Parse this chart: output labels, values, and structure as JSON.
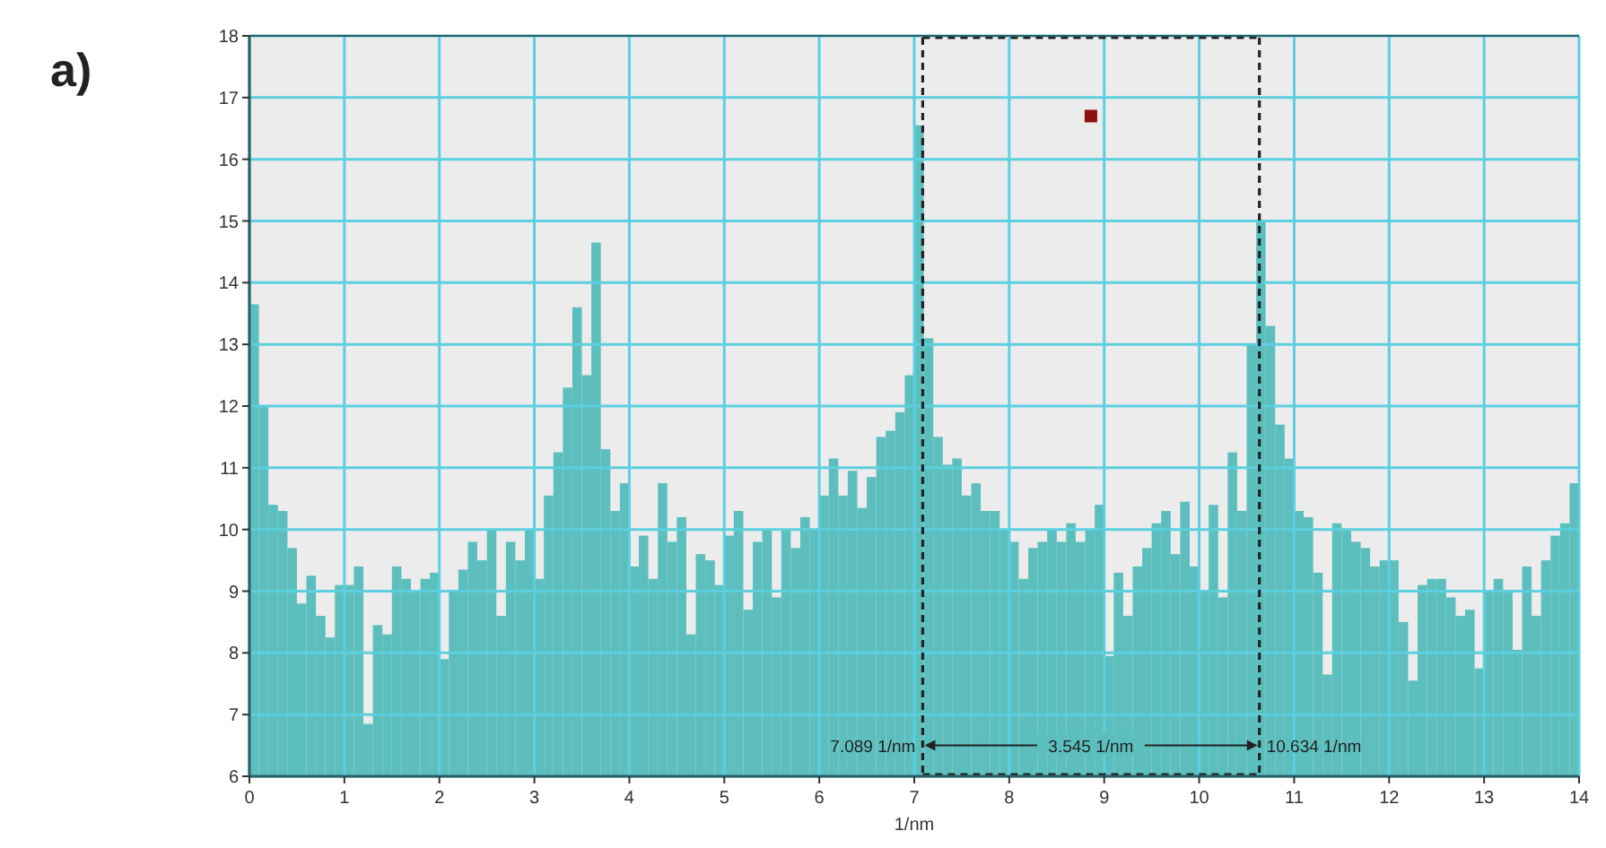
{
  "chart_data": {
    "type": "histogram",
    "title": "a)",
    "xlabel": "1/nm",
    "color": "#5cbfbe",
    "bins": [
      0,
      0.1,
      0.2,
      0.3,
      0.4,
      0.5,
      0.6,
      0.7,
      0.8,
      0.9,
      1,
      1.1,
      1.2,
      1.3,
      1.4,
      1.5,
      1.6,
      1.7,
      1.8,
      1.9,
      2,
      2.1,
      2.2,
      2.3,
      2.4,
      2.5,
      2.6,
      2.7,
      2.8,
      2.9,
      3,
      3.1,
      3.2,
      3.3,
      3.4,
      3.5,
      3.6,
      3.7,
      3.8,
      3.9,
      4,
      4.1,
      4.2,
      4.3,
      4.4,
      4.5,
      4.6,
      4.7,
      4.8,
      4.9,
      5,
      5.1,
      5.2,
      5.3,
      5.4,
      5.5,
      5.6,
      5.7,
      5.8,
      5.9,
      6,
      6.1,
      6.2,
      6.3,
      6.4,
      6.5,
      6.6,
      6.7,
      6.8,
      6.9,
      7,
      7.1,
      7.2,
      7.3,
      7.4,
      7.5,
      7.6,
      7.7,
      7.8,
      7.9,
      8,
      8.1,
      8.2,
      8.3,
      8.4,
      8.5,
      8.6,
      8.7,
      8.8,
      8.9,
      9,
      9.1,
      9.2,
      9.3,
      9.4,
      9.5,
      9.6,
      9.7,
      9.8,
      9.9,
      10,
      10.1,
      10.2,
      10.3,
      10.4,
      10.5,
      10.6,
      10.7,
      10.8,
      10.9,
      11,
      11.1,
      11.2,
      11.3,
      11.4,
      11.5,
      11.6,
      11.7,
      11.8,
      11.9,
      12,
      12.1,
      12.2,
      12.3,
      12.4,
      12.5,
      12.6,
      12.7,
      12.8,
      12.9,
      13,
      13.1,
      13.2,
      13.3,
      13.4,
      13.5,
      13.6,
      13.7,
      13.8,
      13.9,
      14
    ],
    "values": [
      13.65,
      12.0,
      10.4,
      10.3,
      9.7,
      8.8,
      9.25,
      8.6,
      8.25,
      9.1,
      9.1,
      9.4,
      6.85,
      8.45,
      8.3,
      9.4,
      9.2,
      9.0,
      9.2,
      9.3,
      7.9,
      9.0,
      9.35,
      9.8,
      9.5,
      10.0,
      8.6,
      9.8,
      9.5,
      10.0,
      9.2,
      10.55,
      11.25,
      12.3,
      13.6,
      12.5,
      14.65,
      11.3,
      10.3,
      10.75,
      9.4,
      9.9,
      9.2,
      10.75,
      9.8,
      10.2,
      8.3,
      9.6,
      9.5,
      9.1,
      9.9,
      10.3,
      8.7,
      9.8,
      10.0,
      8.9,
      10.0,
      9.7,
      10.2,
      10.0,
      10.55,
      11.15,
      10.55,
      10.95,
      10.35,
      10.85,
      11.5,
      11.6,
      11.9,
      12.5,
      16.55,
      13.1,
      11.5,
      11.05,
      11.15,
      10.55,
      10.75,
      10.3,
      10.3,
      10.0,
      9.8,
      9.2,
      9.7,
      9.8,
      10.0,
      9.8,
      10.1,
      9.8,
      10.0,
      10.4,
      7.95,
      9.3,
      8.6,
      9.4,
      9.7,
      10.1,
      10.3,
      9.6,
      10.45,
      9.4,
      9.0,
      10.4,
      8.9,
      11.25,
      10.3,
      13.0,
      15.0,
      13.3,
      11.7,
      11.15,
      10.3,
      10.2,
      9.3,
      7.65,
      10.1,
      10.0,
      9.8,
      9.7,
      9.4,
      9.5,
      9.5,
      8.5,
      7.55,
      9.1,
      9.2,
      9.2,
      8.9,
      8.6,
      8.7,
      7.75,
      9.0,
      9.2,
      9.0,
      8.05,
      9.4,
      8.6,
      9.5,
      9.9,
      10.1,
      10.75
    ],
    "xlim": [
      0,
      14
    ],
    "xticks": [
      0,
      1,
      2,
      3,
      4,
      5,
      6,
      7,
      8,
      9,
      10,
      11,
      12,
      13,
      14
    ],
    "ylim": [
      6,
      18
    ],
    "yticks": [
      6,
      7,
      8,
      9,
      10,
      11,
      12,
      13,
      14,
      15,
      16,
      17,
      18
    ],
    "grid": true,
    "ref_lines": [
      {
        "axis": "x",
        "value": 7.089,
        "color": "#222222",
        "line_style": "dashed"
      },
      {
        "axis": "x",
        "value": 10.634,
        "color": "#222222",
        "line_style": "dashed"
      }
    ],
    "annotations": [
      {
        "text": "7.089 1/nm",
        "x": 7.089,
        "y": 6.5
      },
      {
        "text": "3.545 1/nm",
        "x": 8.86,
        "y": 6.5
      },
      {
        "text": "10.634 1/nm",
        "x": 10.634,
        "y": 6.5
      }
    ]
  }
}
